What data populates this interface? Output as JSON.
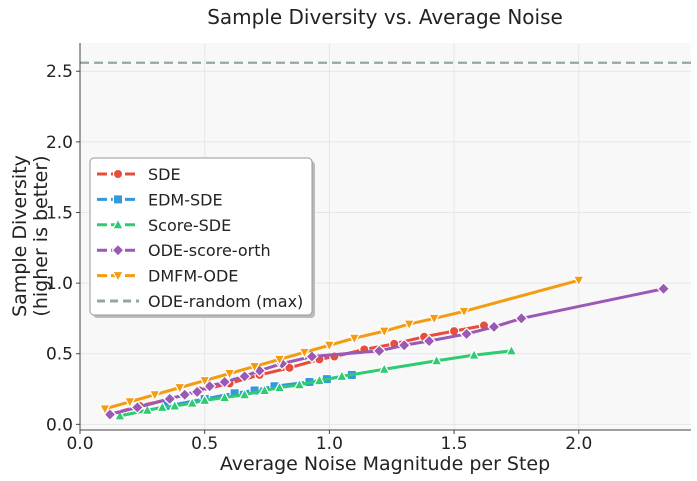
{
  "chart_data": {
    "type": "line",
    "title": "Sample Diversity vs. Average Noise",
    "xlabel": "Average Noise Magnitude per Step",
    "ylabel_lines": [
      "Sample Diversity",
      "(higher is better)"
    ],
    "xlim": [
      0.0,
      2.45
    ],
    "ylim": [
      -0.04,
      2.7
    ],
    "xticks": [
      0.0,
      0.5,
      1.0,
      1.5,
      2.0
    ],
    "xtick_labels": [
      "0.0",
      "0.5",
      "1.0",
      "1.5",
      "2.0"
    ],
    "yticks": [
      0.0,
      0.5,
      1.0,
      1.5,
      2.0,
      2.5
    ],
    "ytick_labels": [
      "0.0",
      "0.5",
      "1.0",
      "1.5",
      "2.0",
      "2.5"
    ],
    "grid": true,
    "legend_position": "center-left",
    "series": [
      {
        "name": "SDE",
        "color": "#e74c3c",
        "marker": "circle",
        "x": [
          0.12,
          0.24,
          0.36,
          0.48,
          0.6,
          0.72,
          0.84,
          0.96,
          1.02,
          1.14,
          1.26,
          1.38,
          1.5,
          1.62
        ],
        "y": [
          0.07,
          0.13,
          0.18,
          0.24,
          0.29,
          0.35,
          0.4,
          0.46,
          0.48,
          0.53,
          0.57,
          0.62,
          0.66,
          0.7
        ]
      },
      {
        "name": "EDM-SDE",
        "color": "#3498db",
        "marker": "square",
        "x": [
          0.35,
          0.5,
          0.62,
          0.7,
          0.78,
          0.92,
          0.99,
          1.09
        ],
        "y": [
          0.13,
          0.18,
          0.22,
          0.24,
          0.27,
          0.3,
          0.32,
          0.35
        ]
      },
      {
        "name": "Score-SDE",
        "color": "#2ecc71",
        "marker": "triangle-up",
        "x": [
          0.16,
          0.27,
          0.33,
          0.38,
          0.45,
          0.5,
          0.58,
          0.66,
          0.74,
          0.8,
          0.88,
          0.96,
          1.05,
          1.22,
          1.43,
          1.58,
          1.73
        ],
        "y": [
          0.06,
          0.1,
          0.12,
          0.13,
          0.15,
          0.17,
          0.19,
          0.21,
          0.24,
          0.26,
          0.28,
          0.31,
          0.34,
          0.39,
          0.45,
          0.49,
          0.52
        ]
      },
      {
        "name": "ODE-score-orth",
        "color": "#9b59b6",
        "marker": "diamond",
        "x": [
          0.12,
          0.23,
          0.36,
          0.42,
          0.47,
          0.52,
          0.58,
          0.66,
          0.72,
          0.81,
          0.93,
          1.2,
          1.3,
          1.4,
          1.55,
          1.66,
          1.77,
          2.34
        ],
        "y": [
          0.07,
          0.12,
          0.18,
          0.21,
          0.23,
          0.27,
          0.3,
          0.34,
          0.38,
          0.43,
          0.48,
          0.52,
          0.56,
          0.59,
          0.64,
          0.69,
          0.75,
          0.96
        ]
      },
      {
        "name": "DMFM-ODE",
        "color": "#f39c12",
        "marker": "triangle-down",
        "x": [
          0.1,
          0.2,
          0.3,
          0.4,
          0.5,
          0.6,
          0.7,
          0.8,
          0.9,
          1.0,
          1.1,
          1.22,
          1.32,
          1.42,
          1.54,
          2.0
        ],
        "y": [
          0.11,
          0.16,
          0.21,
          0.26,
          0.31,
          0.36,
          0.41,
          0.46,
          0.51,
          0.56,
          0.61,
          0.66,
          0.71,
          0.75,
          0.8,
          1.02
        ]
      }
    ],
    "reference_lines": [
      {
        "name": "ODE-random (max)",
        "color": "#95a5a6",
        "y": 2.56,
        "style": "dashed"
      }
    ]
  }
}
